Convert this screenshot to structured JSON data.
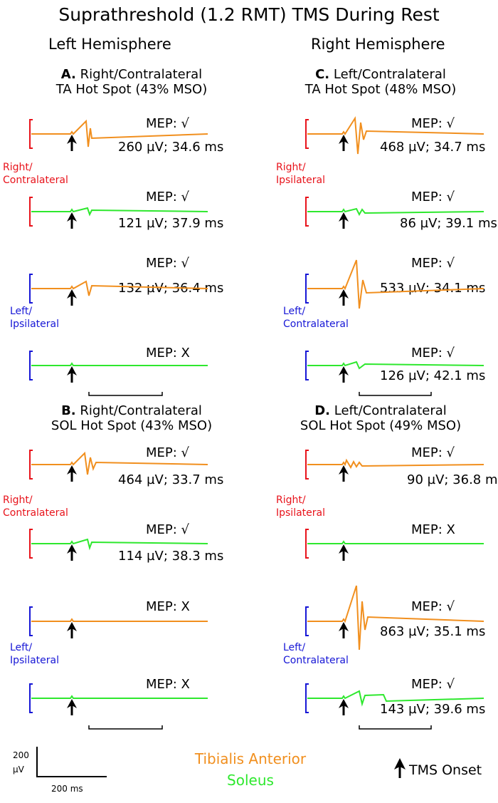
{
  "title": "Suprathreshold (1.2 RMT) TMS During Rest",
  "hemispheres": {
    "left": "Left Hemisphere",
    "right": "Right Hemisphere"
  },
  "colors": {
    "right_side": "#e8131b",
    "left_side": "#1717d6",
    "ta": "#f18f1e",
    "sol": "#2ee82e",
    "arrow": "#000000"
  },
  "panels": [
    {
      "id": "A",
      "letter": "A.",
      "line1": "Right/Contralateral",
      "line2": "TA Hot Spot (43% MSO)",
      "groups": [
        {
          "label1": "Right/",
          "label2": "Contralateral",
          "side": "red"
        },
        {
          "label1": "Left/",
          "label2": "Ipsilateral",
          "side": "blue"
        }
      ],
      "traces": [
        {
          "muscle": "ta",
          "side": "red",
          "mep": "MEP: √",
          "value": "260 µV; 34.6 ms"
        },
        {
          "muscle": "sol",
          "side": "red",
          "mep": "MEP: √",
          "value": "121 µV; 37.9 ms"
        },
        {
          "muscle": "ta",
          "side": "blue",
          "mep": "MEP: √",
          "value": "132 µV; 36.4 ms"
        },
        {
          "muscle": "sol",
          "side": "blue",
          "mep": "MEP: X",
          "value": ""
        }
      ]
    },
    {
      "id": "C",
      "letter": "C.",
      "line1": "Left/Contralateral",
      "line2": "TA Hot Spot (48% MSO)",
      "groups": [
        {
          "label1": "Right/",
          "label2": "Ipsilateral",
          "side": "red"
        },
        {
          "label1": "Left/",
          "label2": "Contralateral",
          "side": "blue"
        }
      ],
      "traces": [
        {
          "muscle": "ta",
          "side": "red",
          "mep": "MEP: √",
          "value": "468 µV; 34.7 ms"
        },
        {
          "muscle": "sol",
          "side": "red",
          "mep": "MEP: √",
          "value": "86 µV; 39.1 ms"
        },
        {
          "muscle": "ta",
          "side": "blue",
          "mep": "MEP: √",
          "value": "533 µV; 34.1 ms"
        },
        {
          "muscle": "sol",
          "side": "blue",
          "mep": "MEP: √",
          "value": "126 µV; 42.1 ms"
        }
      ]
    },
    {
      "id": "B",
      "letter": "B.",
      "line1": "Right/Contralateral",
      "line2": "SOL Hot Spot (43% MSO)",
      "groups": [
        {
          "label1": "Right/",
          "label2": "Contralateral",
          "side": "red"
        },
        {
          "label1": "Left/",
          "label2": "Ipsilateral",
          "side": "blue"
        }
      ],
      "traces": [
        {
          "muscle": "ta",
          "side": "red",
          "mep": "MEP: √",
          "value": "464 µV; 33.7 ms"
        },
        {
          "muscle": "sol",
          "side": "red",
          "mep": "MEP: √",
          "value": "114 µV; 38.3 ms"
        },
        {
          "muscle": "ta",
          "side": "blue",
          "mep": "MEP: X",
          "value": ""
        },
        {
          "muscle": "sol",
          "side": "blue",
          "mep": "MEP: X",
          "value": ""
        }
      ]
    },
    {
      "id": "D",
      "letter": "D.",
      "line1": "Left/Contralateral",
      "line2": "SOL Hot Spot (49% MSO)",
      "groups": [
        {
          "label1": "Right/",
          "label2": "Ipsilateral",
          "side": "red"
        },
        {
          "label1": "Left/",
          "label2": "Contralateral",
          "side": "blue"
        }
      ],
      "traces": [
        {
          "muscle": "ta",
          "side": "red",
          "mep": "MEP: √",
          "value": "90 µV; 36.8 ms"
        },
        {
          "muscle": "sol",
          "side": "red",
          "mep": "MEP: X",
          "value": ""
        },
        {
          "muscle": "ta",
          "side": "blue",
          "mep": "MEP: √",
          "value": "863 µV; 35.1 ms"
        },
        {
          "muscle": "sol",
          "side": "blue",
          "mep": "MEP: √",
          "value": "143 µV; 39.6 ms"
        }
      ]
    }
  ],
  "scale": {
    "amplitude": "200",
    "amplitude_unit": "µV",
    "time": "200 ms"
  },
  "legend": {
    "ta": "Tibialis Anterior",
    "sol": "Soleus",
    "onset": "TMS Onset",
    "onset_icon": "arrow-up-icon"
  }
}
